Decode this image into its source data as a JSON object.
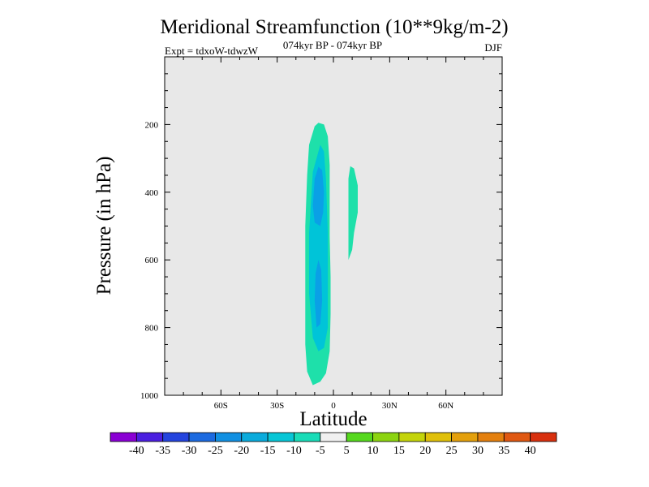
{
  "chart_data": {
    "type": "contour",
    "title": "Meridional Streamfunction (10**9kg/m-2)",
    "left_label": "Expt = tdxoW-tdwzW",
    "center_label": "074kyr BP - 074kyr BP",
    "right_label": "DJF",
    "xlabel": "Latitude",
    "ylabel": "Pressure (in hPa)",
    "xlim": [
      -90,
      90
    ],
    "ylim": [
      1000,
      0
    ],
    "x_ticks": [
      {
        "value": -60,
        "label": "60S"
      },
      {
        "value": -30,
        "label": "30S"
      },
      {
        "value": 0,
        "label": "0"
      },
      {
        "value": 30,
        "label": "30N"
      },
      {
        "value": 60,
        "label": "60N"
      }
    ],
    "y_ticks": [
      {
        "value": 200,
        "label": "200"
      },
      {
        "value": 400,
        "label": "400"
      },
      {
        "value": 600,
        "label": "600"
      },
      {
        "value": 800,
        "label": "800"
      },
      {
        "value": 1000,
        "label": "1000"
      }
    ],
    "background_color": "#e8e8e8",
    "contour_regions": [
      {
        "name": "cell-sh-outer",
        "level": -7.5,
        "color": "#1ee0aa",
        "points": [
          [
            -11,
            970
          ],
          [
            -14,
            930
          ],
          [
            -15,
            850
          ],
          [
            -15,
            700
          ],
          [
            -15,
            500
          ],
          [
            -14,
            350
          ],
          [
            -13,
            260
          ],
          [
            -10,
            205
          ],
          [
            -8,
            195
          ],
          [
            -5,
            200
          ],
          [
            -3,
            235
          ],
          [
            -2,
            320
          ],
          [
            -2,
            420
          ],
          [
            -2,
            530
          ],
          [
            -1.5,
            650
          ],
          [
            -1.5,
            760
          ],
          [
            -2,
            870
          ],
          [
            -4,
            935
          ],
          [
            -7,
            960
          ]
        ]
      },
      {
        "name": "cell-sh-mid",
        "level": -12.5,
        "color": "#00c4d8",
        "points": [
          [
            -8,
            870
          ],
          [
            -11,
            830
          ],
          [
            -13,
            700
          ],
          [
            -13,
            520
          ],
          [
            -11,
            340
          ],
          [
            -7,
            260
          ],
          [
            -5,
            280
          ],
          [
            -4,
            360
          ],
          [
            -3,
            520
          ],
          [
            -3,
            680
          ],
          [
            -3,
            800
          ],
          [
            -5,
            860
          ]
        ]
      },
      {
        "name": "cell-sh-core-upper",
        "level": -17.5,
        "color": "#0aa0e6",
        "points": [
          [
            -10,
            490
          ],
          [
            -11,
            440
          ],
          [
            -10,
            360
          ],
          [
            -8,
            325
          ],
          [
            -6,
            335
          ],
          [
            -5,
            400
          ],
          [
            -5.5,
            460
          ],
          [
            -7,
            500
          ]
        ]
      },
      {
        "name": "cell-sh-core-lower",
        "level": -17.5,
        "color": "#0aa0e6",
        "points": [
          [
            -9,
            800
          ],
          [
            -10,
            720
          ],
          [
            -9.5,
            640
          ],
          [
            -8,
            600
          ],
          [
            -6.5,
            630
          ],
          [
            -6,
            720
          ],
          [
            -7,
            790
          ]
        ]
      },
      {
        "name": "cell-nh-weak",
        "level": -7.5,
        "color": "#1ee0aa",
        "points": [
          [
            8,
            420
          ],
          [
            8,
            360
          ],
          [
            9,
            323
          ],
          [
            11,
            330
          ],
          [
            13,
            380
          ],
          [
            13,
            460
          ],
          [
            11,
            520
          ],
          [
            10,
            570
          ],
          [
            8,
            600
          ]
        ]
      }
    ],
    "colorbar": {
      "labels": [
        "-40",
        "-35",
        "-30",
        "-25",
        "-20",
        "-15",
        "-10",
        "-5",
        "5",
        "10",
        "15",
        "20",
        "25",
        "30",
        "35",
        "40"
      ],
      "colors": [
        "#8a00d4",
        "#4b1fe0",
        "#2444de",
        "#1c6ae0",
        "#1190e2",
        "#0aabdc",
        "#07c6d6",
        "#19dcb8",
        "#f0f0f0",
        "#55d81e",
        "#8cd410",
        "#c4d40a",
        "#e0c00a",
        "#e4a00c",
        "#e4800e",
        "#e05812",
        "#d8300e"
      ]
    }
  }
}
